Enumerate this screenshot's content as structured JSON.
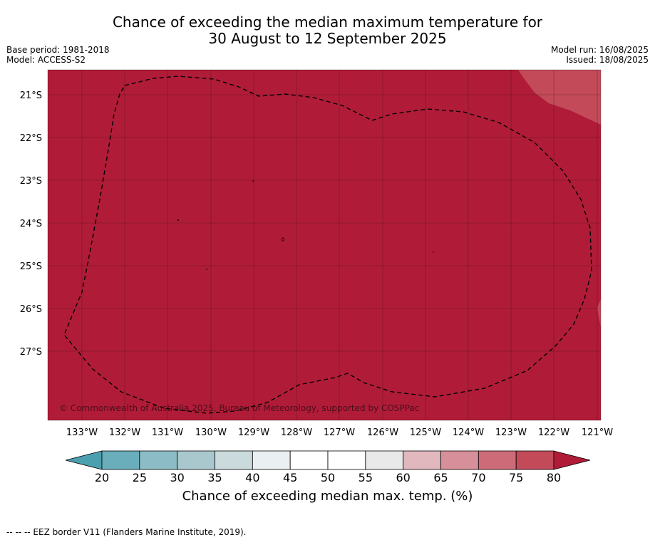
{
  "title": {
    "line1": "Chance of exceeding the median maximum temperature for",
    "line2": "30 August to 12 September 2025"
  },
  "meta_left": {
    "base_period": "Base period: 1981-2018",
    "model": "Model: ACCESS-S2"
  },
  "meta_right": {
    "model_run": "Model run: 16/08/2025",
    "issued": "Issued: 18/08/2025"
  },
  "map": {
    "lat_labels": [
      "21°S",
      "22°S",
      "23°S",
      "24°S",
      "25°S",
      "26°S",
      "27°S"
    ],
    "lon_labels": [
      "133°W",
      "132°W",
      "131°W",
      "130°W",
      "129°W",
      "128°W",
      "127°W",
      "126°W",
      "125°W",
      "124°W",
      "123°W",
      "122°W",
      "121°W"
    ],
    "copyright": "© Commonwealth of Australia 2025, Bureau of Meteorology, supported by COSPPac",
    "fill_color": "#b01c38",
    "light_color": "#c24a59",
    "eez_style": "dashed black line"
  },
  "colorbar": {
    "ticks": [
      "20",
      "25",
      "30",
      "35",
      "40",
      "45",
      "50",
      "55",
      "60",
      "65",
      "70",
      "75",
      "80"
    ],
    "colors": [
      "#6aaebb",
      "#8cbcc5",
      "#a9c8cd",
      "#cbdadd",
      "#eaf0f2",
      "#ffffff",
      "#ffffff",
      "#e9e9e9",
      "#e1b8be",
      "#d78f99",
      "#cd6b78",
      "#c24a59"
    ],
    "under_color": "#4aa0af",
    "over_color": "#b01c38",
    "label": "Chance of exceeding median max. temp. (%)"
  },
  "footer": "--  --  -- EEZ border V11 (Flanders Marine Institute, 2019)."
}
